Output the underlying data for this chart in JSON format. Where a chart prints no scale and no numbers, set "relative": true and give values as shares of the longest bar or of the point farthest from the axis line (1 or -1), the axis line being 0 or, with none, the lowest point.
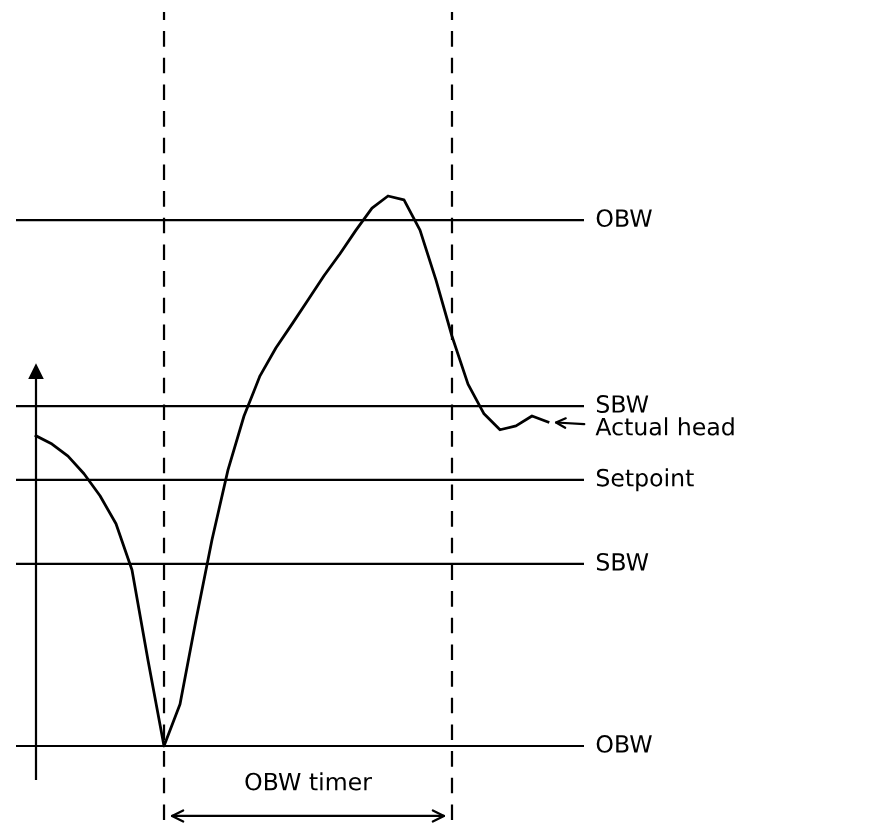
{
  "chart_data": {
    "type": "line",
    "relative": true,
    "legend": false,
    "marker": "none",
    "line_style": "solid",
    "categories": [
      null,
      null,
      null,
      null,
      null,
      null,
      null,
      null,
      null,
      null,
      null,
      null,
      null,
      null,
      null,
      null,
      null,
      null,
      null,
      null,
      null,
      null,
      null,
      null,
      null,
      null,
      null,
      null,
      null,
      null,
      null,
      null,
      null
    ],
    "series": [
      {
        "color": "#000000",
        "values": [
          0.564,
          0.549,
          0.527,
          0.495,
          0.455,
          0.404,
          0.32,
          0.156,
          0,
          0.076,
          0.229,
          0.375,
          0.502,
          0.6,
          0.673,
          0.724,
          0.767,
          0.811,
          0.855,
          0.895,
          0.938,
          0.978,
          1,
          0.993,
          0.938,
          0.847,
          0.745,
          0.658,
          0.604,
          0.575,
          0.582,
          0.6,
          0.589
        ]
      }
    ],
    "ref_lines": [
      {
        "axis": "y",
        "value": 0.956,
        "label": "OBW",
        "color": "#000000",
        "line_style": "solid"
      },
      {
        "axis": "y",
        "value": 0.618,
        "label": "SBW",
        "color": "#000000",
        "line_style": "solid"
      },
      {
        "axis": "y",
        "value": 0.484,
        "label": "Setpoint",
        "color": "#000000",
        "line_style": "solid"
      },
      {
        "axis": "y",
        "value": 0.331,
        "label": "SBW",
        "color": "#000000",
        "line_style": "solid"
      },
      {
        "axis": "y",
        "value": 0,
        "label": "OBW",
        "color": "#000000",
        "line_style": "solid"
      }
    ],
    "annotations": [
      "Actual head",
      "OBW timer"
    ]
  }
}
